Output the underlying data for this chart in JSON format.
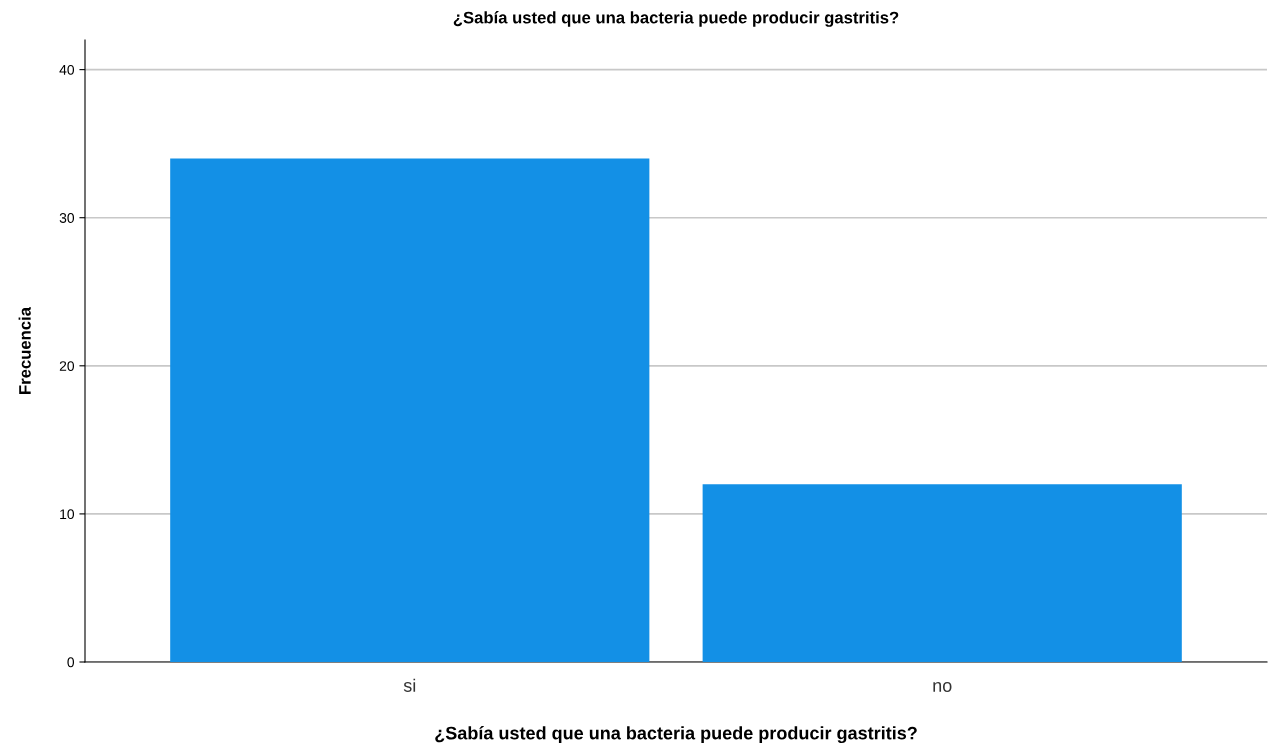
{
  "chart_data": {
    "type": "bar",
    "title": "¿Sabía usted que una bacteria puede producir gastritis?",
    "xlabel": "¿Sabía usted que una bacteria puede producir gastritis?",
    "ylabel": "Frecuencia",
    "categories": [
      "si",
      "no"
    ],
    "values": [
      34,
      12
    ],
    "color": "#1390e6",
    "ylim": [
      0,
      42
    ],
    "yticks": [
      0,
      10,
      20,
      30,
      40
    ],
    "grid": "y"
  }
}
